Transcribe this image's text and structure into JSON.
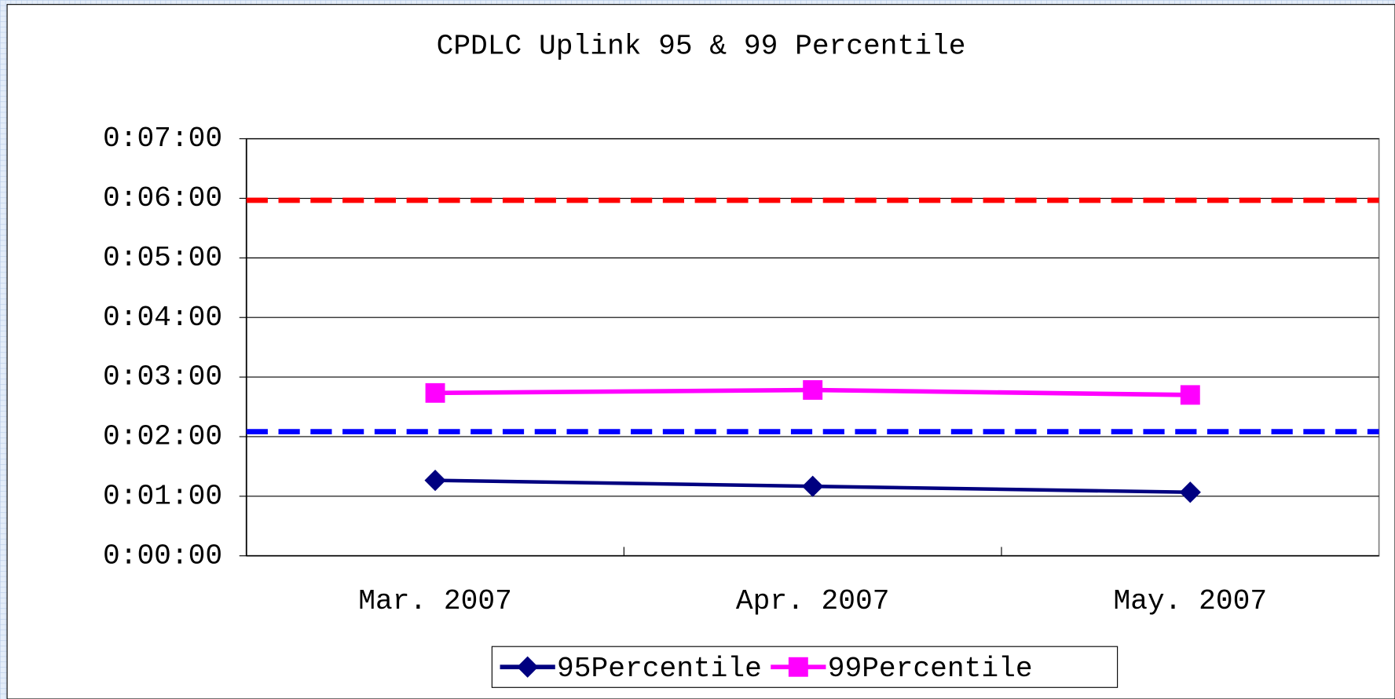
{
  "chart_data": {
    "type": "line",
    "title": "CPDLC Uplink 95 & 99 Percentile",
    "categories": [
      "Mar. 2007",
      "Apr. 2007",
      "May. 2007"
    ],
    "series": [
      {
        "name": "95Percentile",
        "color": "#000080",
        "marker": "diamond",
        "values": [
          76,
          70,
          64
        ]
      },
      {
        "name": "99Percentile",
        "color": "#ff00ff",
        "marker": "square",
        "values": [
          164,
          167,
          162
        ]
      }
    ],
    "reference_lines": [
      {
        "value": 358,
        "color": "#ff0000"
      },
      {
        "value": 125,
        "color": "#0000ff"
      }
    ],
    "ylim": [
      0,
      420
    ],
    "yticks": [
      {
        "value": 0,
        "label": "0:00:00"
      },
      {
        "value": 60,
        "label": "0:01:00"
      },
      {
        "value": 120,
        "label": "0:02:00"
      },
      {
        "value": 180,
        "label": "0:03:00"
      },
      {
        "value": 240,
        "label": "0:04:00"
      },
      {
        "value": 300,
        "label": "0:05:00"
      },
      {
        "value": 360,
        "label": "0:06:00"
      },
      {
        "value": 420,
        "label": "0:07:00"
      }
    ],
    "grid": true
  }
}
